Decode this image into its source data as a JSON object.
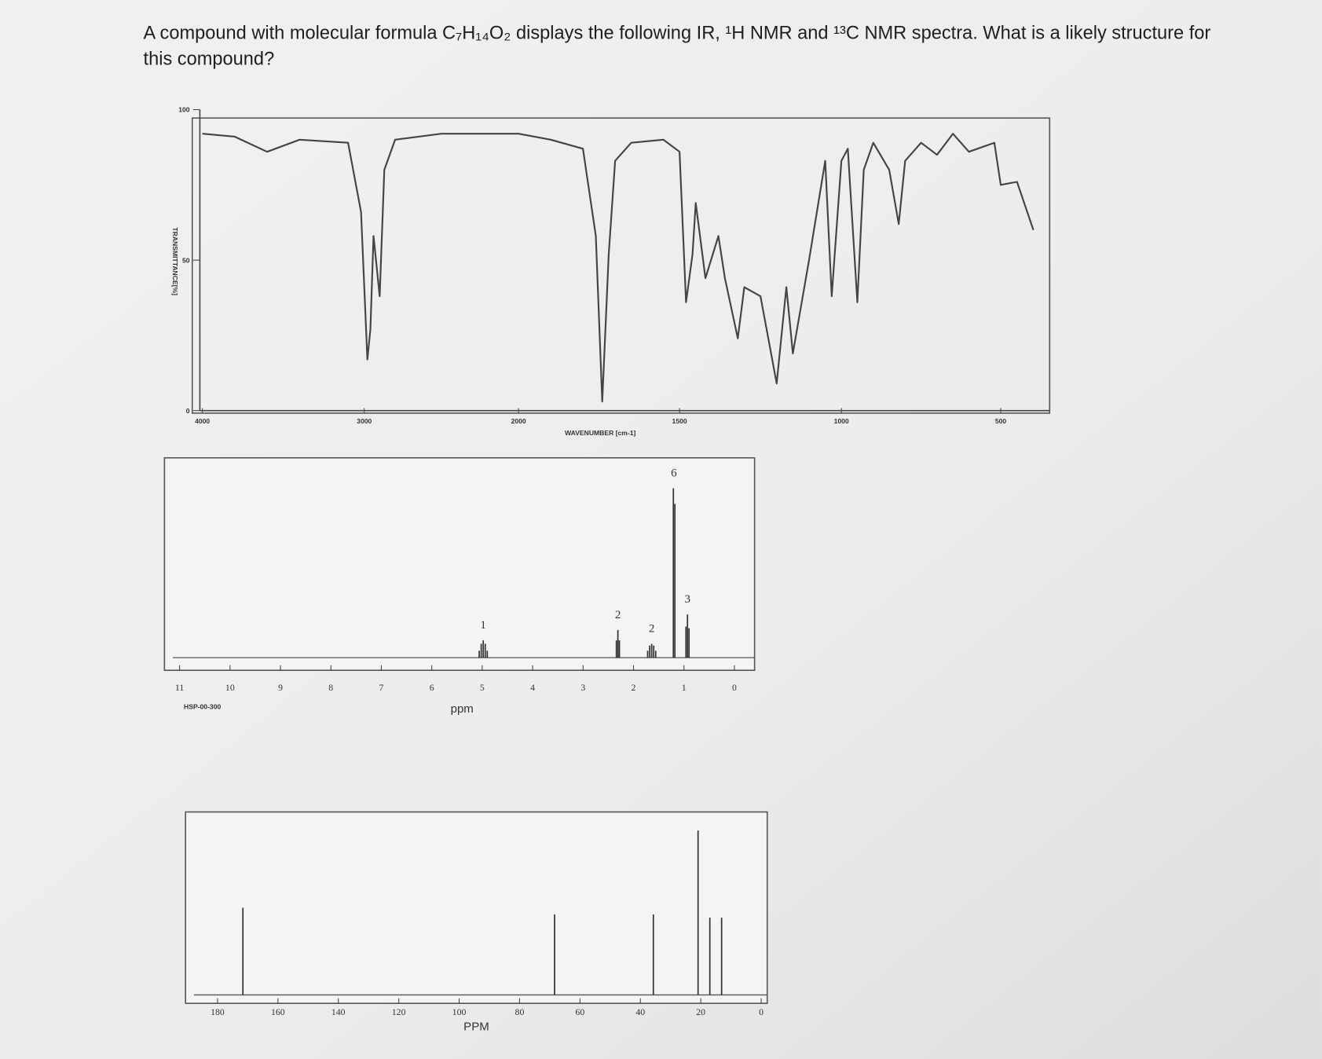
{
  "question": [
    "A compound with molecular formula C₇H₁₄O₂ displays the following IR, ¹H NMR and ¹³C NMR spectra. What is a likely structure for",
    "this compound?"
  ],
  "chart_data": [
    {
      "type": "line",
      "x_label": "WAVENUMBER [cm-1]",
      "y_label": "TRANSMITTANCE[%]",
      "x": [
        4000,
        3800,
        3600,
        3400,
        3100,
        3020,
        2980,
        2960,
        2940,
        2900,
        2870,
        2800,
        2500,
        2200,
        2000,
        1900,
        1800,
        1760,
        1740,
        1720,
        1700,
        1650,
        1550,
        1500,
        1480,
        1460,
        1450,
        1420,
        1380,
        1360,
        1320,
        1300,
        1250,
        1200,
        1170,
        1150,
        1100,
        1050,
        1030,
        1000,
        980,
        950,
        930,
        900,
        850,
        820,
        800,
        750,
        700,
        650,
        600,
        520,
        500,
        450,
        400
      ],
      "values": [
        92,
        91,
        86,
        90,
        89,
        66,
        17,
        27,
        58,
        38,
        80,
        90,
        92,
        92,
        92,
        90,
        87,
        58,
        3,
        52,
        83,
        89,
        90,
        86,
        36,
        52,
        69,
        44,
        58,
        44,
        24,
        41,
        38,
        9,
        41,
        19,
        50,
        83,
        38,
        83,
        87,
        36,
        80,
        89,
        80,
        62,
        83,
        89,
        85,
        92,
        86,
        89,
        75,
        76,
        60
      ],
      "color": "#444444",
      "xlim": [
        4060,
        350
      ],
      "xticks": [
        4000,
        3000,
        2000,
        1500,
        1000,
        500
      ],
      "ylim": [
        0,
        100
      ],
      "yticks": [
        100,
        50,
        0
      ]
    },
    {
      "type": "stem",
      "x_label": "ppm",
      "code": "HSP-00-300",
      "x": [
        5.06,
        5.02,
        4.98,
        4.94,
        4.9,
        2.34,
        2.31,
        2.28,
        1.72,
        1.68,
        1.64,
        1.6,
        1.56,
        1.21,
        1.18,
        0.96,
        0.93,
        0.9
      ],
      "values": [
        4,
        8,
        10,
        8,
        4,
        10,
        16,
        10,
        4,
        7,
        8,
        7,
        4,
        98,
        89,
        18,
        25,
        17
      ],
      "color": "#333333",
      "integrals": [
        {
          "x": 4.98,
          "value": 1
        },
        {
          "x": 2.31,
          "value": 2
        },
        {
          "x": 1.64,
          "value": 2
        },
        {
          "x": 1.2,
          "value": 6
        },
        {
          "x": 0.93,
          "value": 3
        }
      ],
      "xlim": [
        11.3,
        -0.4
      ],
      "xticks": [
        11,
        10,
        9,
        8,
        7,
        6,
        5,
        4,
        3,
        2,
        1,
        0
      ],
      "ylim": [
        0,
        100
      ]
    },
    {
      "type": "stem",
      "x_label": "PPM",
      "x": [
        171.6,
        68.4,
        35.7,
        20.9,
        17.0,
        13.1
      ],
      "values": [
        53,
        49,
        49,
        100,
        47,
        47
      ],
      "color": "#333333",
      "xlim": [
        190.6,
        -2
      ],
      "xticks": [
        180,
        160,
        140,
        120,
        100,
        80,
        60,
        40,
        20,
        0
      ],
      "ylim": [
        0,
        100
      ]
    }
  ]
}
